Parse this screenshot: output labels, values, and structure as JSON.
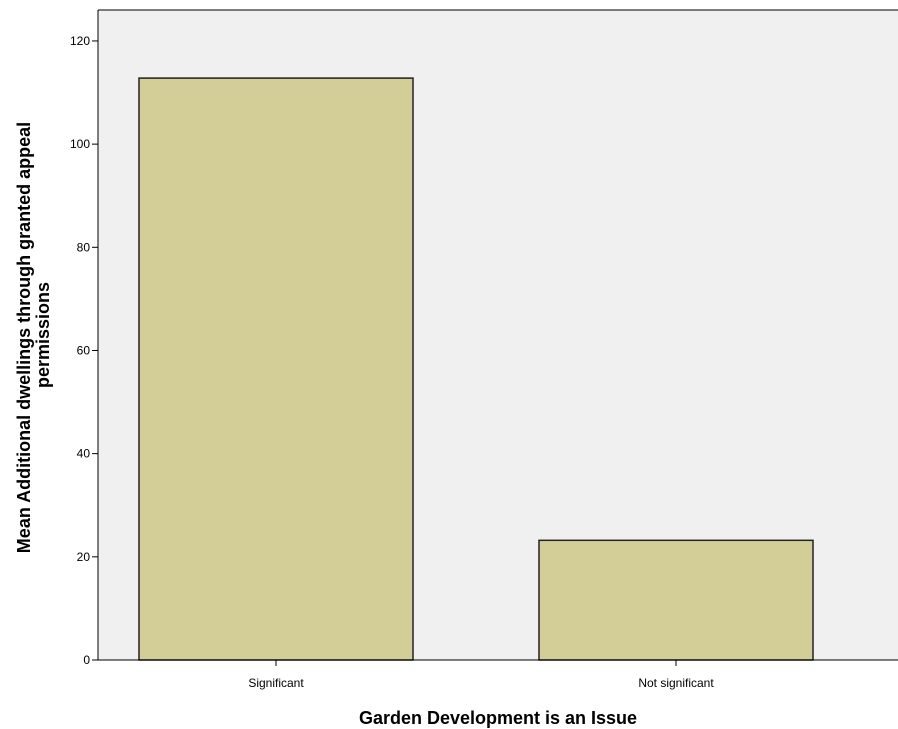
{
  "chart_data": {
    "type": "bar",
    "categories": [
      "Significant",
      "Not significant"
    ],
    "values": [
      112.8,
      23.2
    ],
    "title": "",
    "xlabel": "Garden Development is an Issue",
    "ylabel_lines": [
      "Mean Additional dwellings through granted appeal",
      "permissions"
    ],
    "ylim": [
      0,
      126
    ],
    "yticks": [
      0,
      20,
      40,
      60,
      80,
      100,
      120
    ],
    "grid": false,
    "colors": {
      "bar_fill": "#d3ce98",
      "bar_stroke": "#222222",
      "plot_background": "#f0f0f0",
      "axis": "#000000"
    }
  }
}
